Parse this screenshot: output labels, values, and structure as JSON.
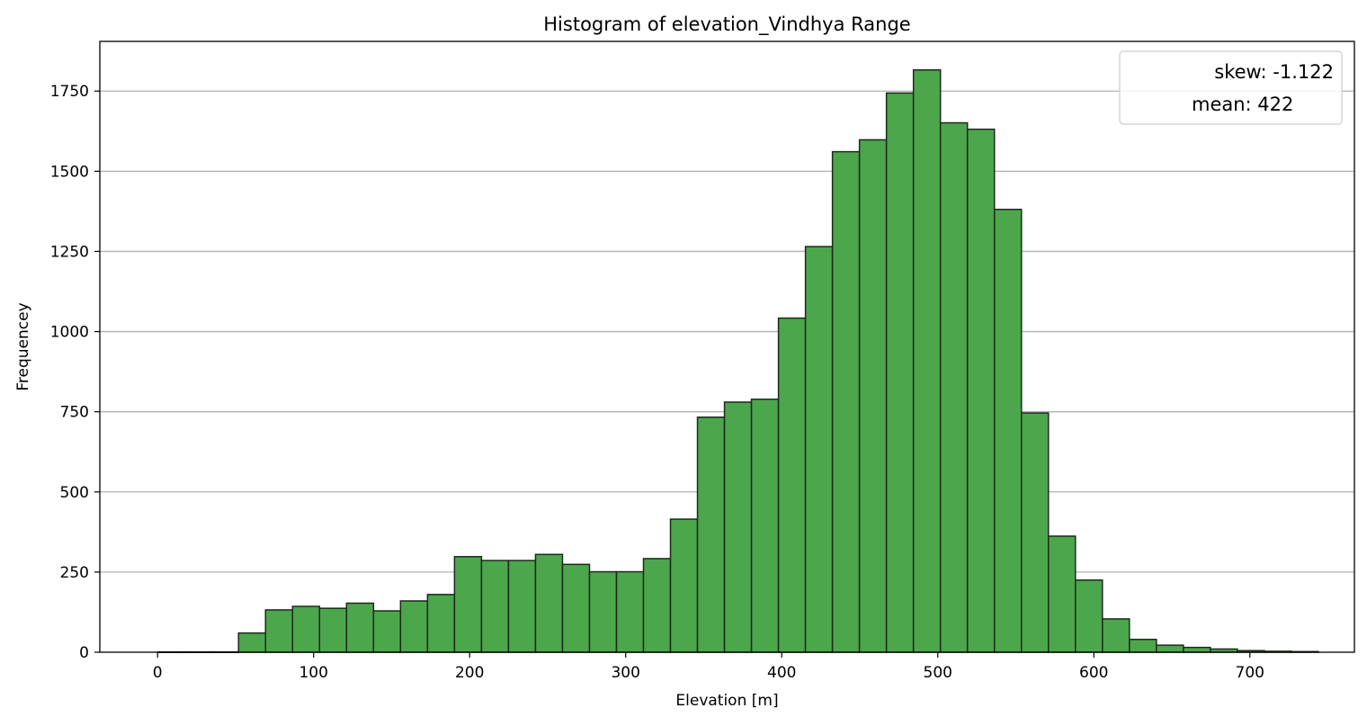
{
  "chart_data": {
    "type": "bar",
    "title": "Histogram of elevation_Vindhya Range",
    "xlabel": "Elevation [m]",
    "ylabel": "Frequencey",
    "xlim": [
      -37,
      767
    ],
    "ylim": [
      0,
      1905
    ],
    "bin_start": 0,
    "bin_width": 17.3,
    "values": [
      1,
      1,
      1,
      60,
      132,
      143,
      137,
      153,
      129,
      160,
      180,
      298,
      286,
      286,
      305,
      274,
      251,
      251,
      292,
      415,
      733,
      780,
      789,
      1042,
      1265,
      1561,
      1598,
      1744,
      1816,
      1651,
      1631,
      1381,
      746,
      362,
      225,
      104,
      40,
      22,
      15,
      10,
      5,
      3,
      2
    ],
    "x_ticks": [
      0,
      100,
      200,
      300,
      400,
      500,
      600,
      700
    ],
    "y_ticks": [
      0,
      250,
      500,
      750,
      1000,
      1250,
      1500,
      1750
    ],
    "grid": "y",
    "bar_color": "#4ca64c",
    "edge_color": "#1c2a1c",
    "legend": {
      "placement": "top-right",
      "entries": [
        "skew: -1.122",
        "mean: 422"
      ]
    }
  }
}
